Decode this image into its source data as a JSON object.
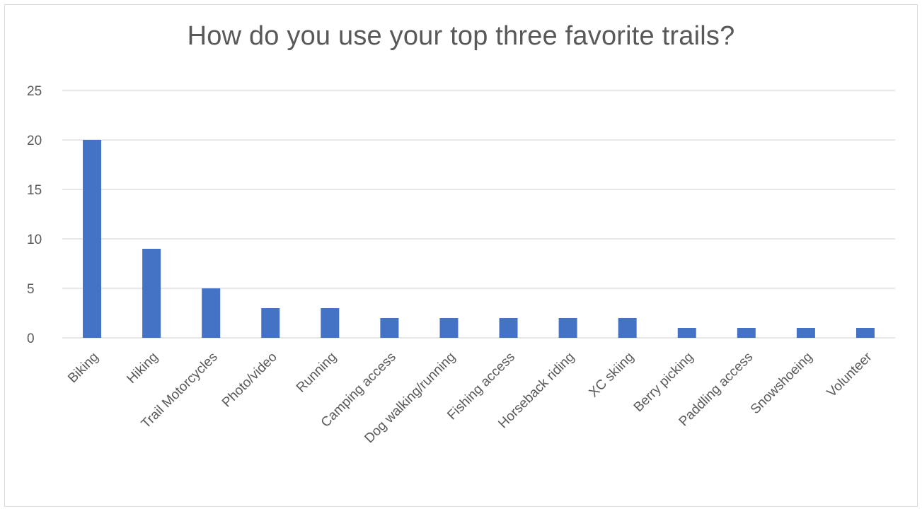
{
  "chart_data": {
    "type": "bar",
    "title": "How do you use your top three favorite trails?",
    "xlabel": "",
    "ylabel": "",
    "categories": [
      "Biking",
      "Hiking",
      "Trail Motorcycles",
      "Photo/video",
      "Running",
      "Camping access",
      "Dog walking/running",
      "Fishing access",
      "Horseback riding",
      "XC skiing",
      "Berry picking",
      "Paddling access",
      "Snowshoeing",
      "Volunteer"
    ],
    "values": [
      20,
      9,
      5,
      3,
      3,
      2,
      2,
      2,
      2,
      2,
      1,
      1,
      1,
      1
    ],
    "ylim": [
      0,
      25
    ],
    "yticks": [
      0,
      5,
      10,
      15,
      20,
      25
    ],
    "grid": true,
    "legend": "none",
    "colors": {
      "bar": "#4472c4",
      "grid": "#d9d9d9",
      "text": "#595959"
    }
  }
}
